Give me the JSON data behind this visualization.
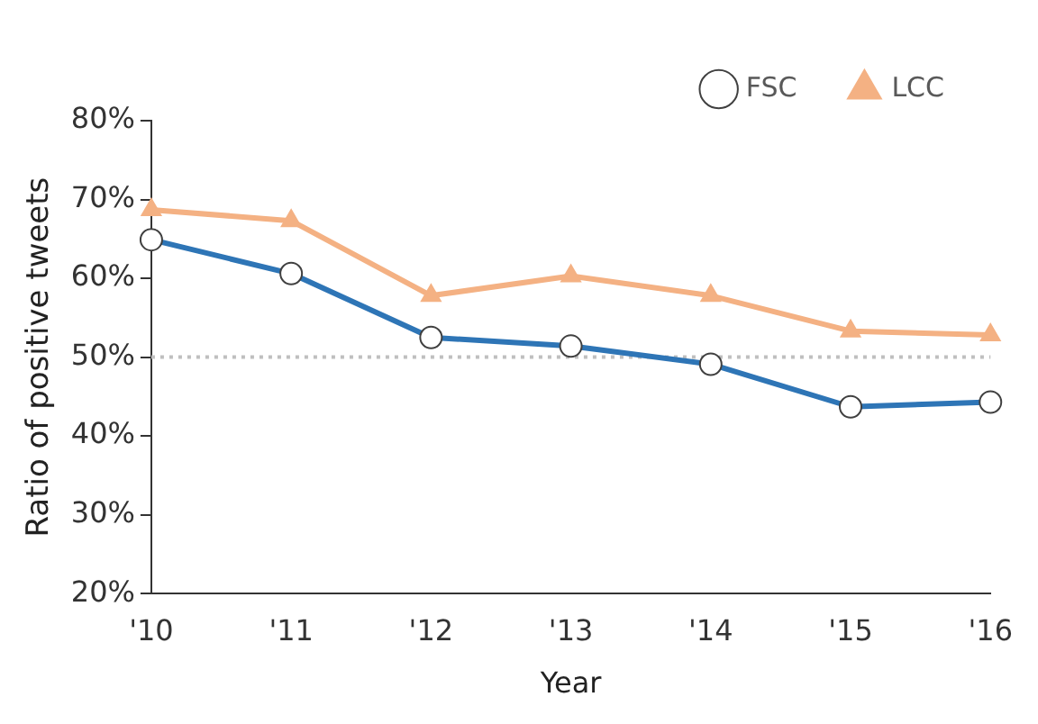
{
  "chart_data": {
    "type": "line",
    "xlabel": "Year",
    "ylabel": "Ratio of positive tweets",
    "categories": [
      "'10",
      "'11",
      "'12",
      "'13",
      "'14",
      "'15",
      "'16"
    ],
    "series": [
      {
        "name": "FSC",
        "color": "#2e75b6",
        "marker": "circle",
        "values": [
          64.9,
          60.6,
          52.5,
          51.4,
          49.1,
          43.7,
          44.3
        ]
      },
      {
        "name": "LCC",
        "color": "#f4b183",
        "marker": "triangle",
        "values": [
          68.7,
          67.3,
          57.8,
          60.3,
          57.8,
          53.3,
          52.8
        ]
      }
    ],
    "ylim": [
      20,
      80
    ],
    "yticks": [
      {
        "value": 20,
        "label": "20%"
      },
      {
        "value": 30,
        "label": "30%"
      },
      {
        "value": 40,
        "label": "40%"
      },
      {
        "value": 50,
        "label": "50%"
      },
      {
        "value": 60,
        "label": "60%"
      },
      {
        "value": 70,
        "label": "70%"
      },
      {
        "value": 80,
        "label": "80%"
      }
    ],
    "ref_lines": [
      {
        "axis": "y",
        "value": 50,
        "color": "#bfbfbf",
        "line_style": "dotted"
      }
    ],
    "grid": false,
    "legend": "top right",
    "line_style": "solid"
  }
}
